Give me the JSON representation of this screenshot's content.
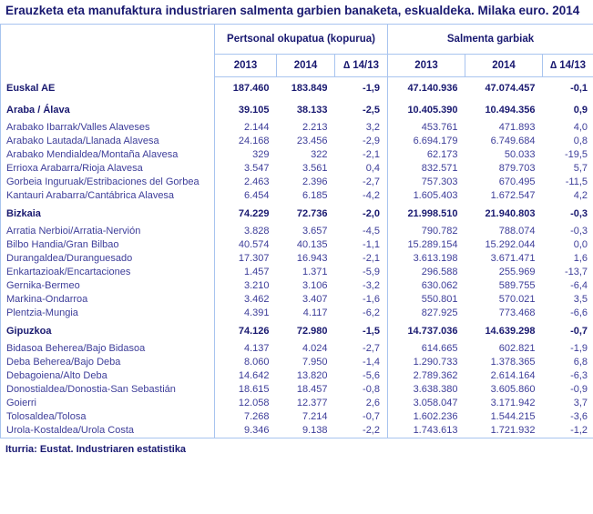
{
  "colors": {
    "border_blue": "#a8c4ef",
    "text_title_navy": "#191970",
    "text_data_blue": "#3d3d99",
    "background": "#ffffff"
  },
  "chart_data": {
    "type": "table",
    "title": "Erauzketa eta manufaktura industriaren salmenta garbien banaketa, eskualdeka. Milaka euro. 2014",
    "source": "Iturria: Eustat. Industriaren estatistika",
    "column_groups": [
      {
        "label": "Pertsonal okupatua (kopurua)",
        "span": 3
      },
      {
        "label": "Salmenta garbiak",
        "span": 3
      }
    ],
    "columns": [
      "2013",
      "2014",
      "∆ 14/13",
      "2013",
      "2014",
      "∆ 14/13"
    ],
    "rows": [
      {
        "label": "Euskal AE",
        "bold": true,
        "values": [
          "187.460",
          "183.849",
          "-1,9",
          "47.140.936",
          "47.074.457",
          "-0,1"
        ]
      },
      {
        "label": "Araba / Álava",
        "bold": true,
        "values": [
          "39.105",
          "38.133",
          "-2,5",
          "10.405.390",
          "10.494.356",
          "0,9"
        ]
      },
      {
        "label": "Arabako Ibarrak/Valles Alaveses",
        "bold": false,
        "values": [
          "2.144",
          "2.213",
          "3,2",
          "453.761",
          "471.893",
          "4,0"
        ]
      },
      {
        "label": "Arabako Lautada/Llanada Alavesa",
        "bold": false,
        "values": [
          "24.168",
          "23.456",
          "-2,9",
          "6.694.179",
          "6.749.684",
          "0,8"
        ]
      },
      {
        "label": "Arabako Mendialdea/Montaña Alavesa",
        "bold": false,
        "values": [
          "329",
          "322",
          "-2,1",
          "62.173",
          "50.033",
          "-19,5"
        ]
      },
      {
        "label": "Errioxa Arabarra/Rioja Alavesa",
        "bold": false,
        "values": [
          "3.547",
          "3.561",
          "0,4",
          "832.571",
          "879.703",
          "5,7"
        ]
      },
      {
        "label": "Gorbeia Inguruak/Estribaciones del Gorbea",
        "bold": false,
        "values": [
          "2.463",
          "2.396",
          "-2,7",
          "757.303",
          "670.495",
          "-11,5"
        ]
      },
      {
        "label": "Kantauri Arabarra/Cantábrica Alavesa",
        "bold": false,
        "values": [
          "6.454",
          "6.185",
          "-4,2",
          "1.605.403",
          "1.672.547",
          "4,2"
        ]
      },
      {
        "label": "Bizkaia",
        "bold": true,
        "values": [
          "74.229",
          "72.736",
          "-2,0",
          "21.998.510",
          "21.940.803",
          "-0,3"
        ]
      },
      {
        "label": "Arratia Nerbioi/Arratia-Nervión",
        "bold": false,
        "values": [
          "3.828",
          "3.657",
          "-4,5",
          "790.782",
          "788.074",
          "-0,3"
        ]
      },
      {
        "label": "Bilbo Handia/Gran Bilbao",
        "bold": false,
        "values": [
          "40.574",
          "40.135",
          "-1,1",
          "15.289.154",
          "15.292.044",
          "0,0"
        ]
      },
      {
        "label": "Durangaldea/Duranguesado",
        "bold": false,
        "values": [
          "17.307",
          "16.943",
          "-2,1",
          "3.613.198",
          "3.671.471",
          "1,6"
        ]
      },
      {
        "label": "Enkartazioak/Encartaciones",
        "bold": false,
        "values": [
          "1.457",
          "1.371",
          "-5,9",
          "296.588",
          "255.969",
          "-13,7"
        ]
      },
      {
        "label": "Gernika-Bermeo",
        "bold": false,
        "values": [
          "3.210",
          "3.106",
          "-3,2",
          "630.062",
          "589.755",
          "-6,4"
        ]
      },
      {
        "label": "Markina-Ondarroa",
        "bold": false,
        "values": [
          "3.462",
          "3.407",
          "-1,6",
          "550.801",
          "570.021",
          "3,5"
        ]
      },
      {
        "label": "Plentzia-Mungia",
        "bold": false,
        "values": [
          "4.391",
          "4.117",
          "-6,2",
          "827.925",
          "773.468",
          "-6,6"
        ]
      },
      {
        "label": "Gipuzkoa",
        "bold": true,
        "values": [
          "74.126",
          "72.980",
          "-1,5",
          "14.737.036",
          "14.639.298",
          "-0,7"
        ]
      },
      {
        "label": "Bidasoa Beherea/Bajo Bidasoa",
        "bold": false,
        "values": [
          "4.137",
          "4.024",
          "-2,7",
          "614.665",
          "602.821",
          "-1,9"
        ]
      },
      {
        "label": "Deba Beherea/Bajo Deba",
        "bold": false,
        "values": [
          "8.060",
          "7.950",
          "-1,4",
          "1.290.733",
          "1.378.365",
          "6,8"
        ]
      },
      {
        "label": "Debagoiena/Alto Deba",
        "bold": false,
        "values": [
          "14.642",
          "13.820",
          "-5,6",
          "2.789.362",
          "2.614.164",
          "-6,3"
        ]
      },
      {
        "label": "Donostialdea/Donostia-San Sebastián",
        "bold": false,
        "values": [
          "18.615",
          "18.457",
          "-0,8",
          "3.638.380",
          "3.605.860",
          "-0,9"
        ]
      },
      {
        "label": "Goierri",
        "bold": false,
        "values": [
          "12.058",
          "12.377",
          "2,6",
          "3.058.047",
          "3.171.942",
          "3,7"
        ]
      },
      {
        "label": "Tolosaldea/Tolosa",
        "bold": false,
        "values": [
          "7.268",
          "7.214",
          "-0,7",
          "1.602.236",
          "1.544.215",
          "-3,6"
        ]
      },
      {
        "label": "Urola-Kostaldea/Urola Costa",
        "bold": false,
        "values": [
          "9.346",
          "9.138",
          "-2,2",
          "1.743.613",
          "1.721.932",
          "-1,2"
        ]
      }
    ]
  }
}
